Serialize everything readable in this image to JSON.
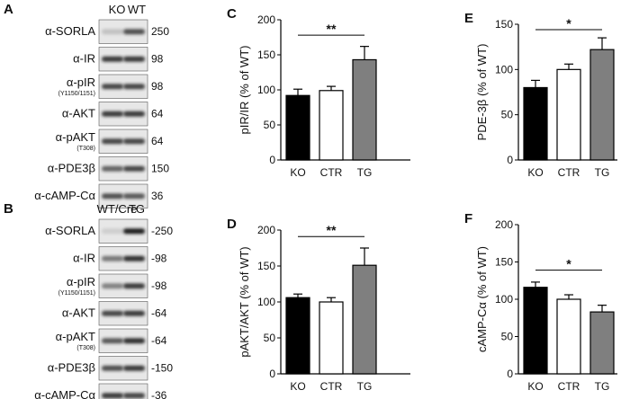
{
  "blots": [
    {
      "panel": "A",
      "lanes": [
        "KO",
        "WT"
      ],
      "rows": [
        {
          "label": "α-SORLA",
          "sub": "",
          "mw": "250",
          "a": 0.18,
          "b": 0.75
        },
        {
          "label": "α-IR",
          "sub": "",
          "mw": "98",
          "a": 0.85,
          "b": 0.85
        },
        {
          "label": "α-pIR",
          "sub": "(Y1150/1151)",
          "mw": "98",
          "a": 0.8,
          "b": 0.8
        },
        {
          "label": "α-AKT",
          "sub": "",
          "mw": "64",
          "a": 0.85,
          "b": 0.85
        },
        {
          "label": "α-pAKT",
          "sub": "(T308)",
          "mw": "64",
          "a": 0.8,
          "b": 0.8
        },
        {
          "label": "α-PDE3β",
          "sub": "",
          "mw": "150",
          "a": 0.65,
          "b": 0.8
        },
        {
          "label": "α-cAMP-Cα",
          "sub": "",
          "mw": "36",
          "a": 0.75,
          "b": 0.7
        }
      ]
    },
    {
      "panel": "B",
      "lanes": [
        "WT/Cre",
        "TG"
      ],
      "rows": [
        {
          "label": "α-SORLA",
          "sub": "",
          "mw": "-250",
          "a": 0.12,
          "b": 1.0
        },
        {
          "label": "α-IR",
          "sub": "",
          "mw": "-98",
          "a": 0.55,
          "b": 0.9
        },
        {
          "label": "α-pIR",
          "sub": "(Y1150/1151)",
          "mw": "-98",
          "a": 0.5,
          "b": 0.85
        },
        {
          "label": "α-AKT",
          "sub": "",
          "mw": "-64",
          "a": 0.8,
          "b": 0.85
        },
        {
          "label": "α-pAKT",
          "sub": "(T308)",
          "mw": "-64",
          "a": 0.7,
          "b": 0.9
        },
        {
          "label": "α-PDE3β",
          "sub": "",
          "mw": "-150",
          "a": 0.75,
          "b": 0.85
        },
        {
          "label": "α-cAMP-Cα",
          "sub": "",
          "mw": "-36",
          "a": 0.85,
          "b": 0.8
        }
      ]
    }
  ],
  "chart_data": [
    {
      "panel": "C",
      "type": "bar",
      "categories": [
        "KO",
        "CTR",
        "TG"
      ],
      "values": [
        92,
        99,
        143
      ],
      "errors": [
        9,
        6,
        19
      ],
      "ylabel": "pIR/IR (% of WT)",
      "ylim": [
        0,
        200
      ],
      "yticks": [
        0,
        50,
        100,
        150,
        200
      ],
      "significance": {
        "from": 0,
        "to": 2,
        "label": "**"
      }
    },
    {
      "panel": "D",
      "type": "bar",
      "categories": [
        "KO",
        "CTR",
        "TG"
      ],
      "values": [
        106,
        100,
        151
      ],
      "errors": [
        5,
        6,
        24
      ],
      "ylabel": "pAKT/AKT (% of WT)",
      "ylim": [
        0,
        200
      ],
      "yticks": [
        0,
        50,
        100,
        150,
        200
      ],
      "significance": {
        "from": 0,
        "to": 2,
        "label": "**"
      }
    },
    {
      "panel": "E",
      "type": "bar",
      "categories": [
        "KO",
        "CTR",
        "TG"
      ],
      "values": [
        80,
        100,
        122
      ],
      "errors": [
        8,
        6,
        13
      ],
      "ylabel": "PDE-3β (% of WT)",
      "ylim": [
        0,
        150
      ],
      "yticks": [
        0,
        50,
        100,
        150
      ],
      "significance": {
        "from": 0,
        "to": 2,
        "label": "*"
      }
    },
    {
      "panel": "F",
      "type": "bar",
      "categories": [
        "KO",
        "CTR",
        "TG"
      ],
      "values": [
        116,
        100,
        83
      ],
      "errors": [
        7,
        6,
        9
      ],
      "ylabel": "cAMP-Cα (% of WT)",
      "ylim": [
        0,
        200
      ],
      "yticks": [
        0,
        50,
        100,
        150,
        200
      ],
      "significance": {
        "from": 0,
        "to": 2,
        "label": "*"
      }
    }
  ],
  "colors": {
    "bars": [
      "#000000",
      "#ffffff",
      "#7f7f7f"
    ],
    "stroke": "#000000",
    "band": "#1e1e1e",
    "blot_bg": "#e7e7e7"
  }
}
